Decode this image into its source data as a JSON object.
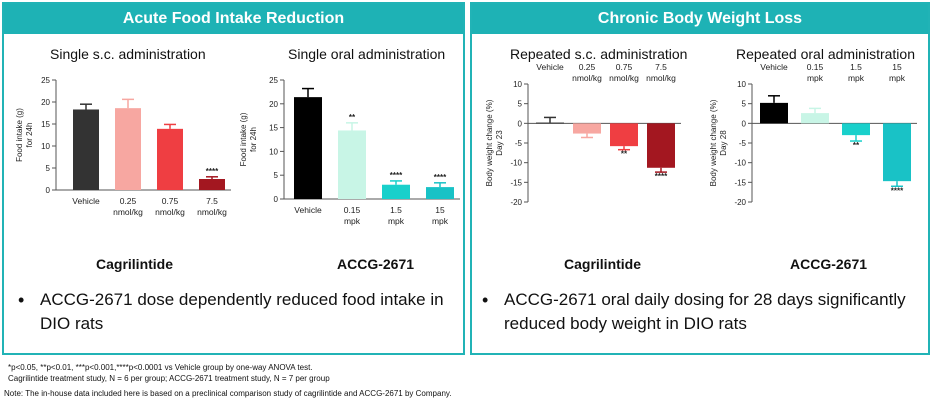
{
  "left_panel": {
    "banner": "Acute Food Intake Reduction",
    "drug_a": "Cagrilintide",
    "drug_b": "ACCG-2671",
    "bullet": "ACCG-2671 dose dependently reduced food intake in DIO rats"
  },
  "right_panel": {
    "banner": "Chronic Body Weight Loss",
    "drug_a": "Cagrilintide",
    "drug_b": "ACCG-2671",
    "bullet": "ACCG-2671 oral daily dosing for 28 days significantly reduced body weight in DIO rats"
  },
  "footnotes": {
    "line1": "*p<0.05, **p<0.01, ***p<0.001,****p<0.0001 vs Vehicle group by one-way ANOVA test.",
    "line2": "Cagrilintide treatment study, N = 6 per group; ACCG-2671 treatment study, N = 7 per group",
    "line3": "Note: The in-house data included here is based on a preclinical comparison study of cagrilintide and ACCG-2671 by Company."
  },
  "chart_data": [
    {
      "type": "bar",
      "title": "Single s.c. administration",
      "ylabel": [
        "Food intake (g)",
        "for 24h"
      ],
      "ylim": [
        0,
        25
      ],
      "yticks": [
        0,
        5,
        10,
        15,
        20,
        25
      ],
      "categories": [
        [
          "Vehicle"
        ],
        [
          "0.25",
          "nmol/kg"
        ],
        [
          "0.75",
          "nmol/kg"
        ],
        [
          "7.5",
          "nmol/kg"
        ]
      ],
      "values": [
        18.3,
        18.6,
        13.9,
        2.5
      ],
      "errors": [
        1.2,
        2.0,
        1.0,
        0.5
      ],
      "colors": [
        "#333333",
        "#f7a7a1",
        "#ef3e42",
        "#a31720"
      ],
      "significance": [
        "",
        "",
        "",
        "****"
      ]
    },
    {
      "type": "bar",
      "title": "Single oral administration",
      "ylabel": [
        "Food intake (g)",
        "for 24h"
      ],
      "ylim": [
        0,
        25
      ],
      "yticks": [
        0,
        5,
        10,
        15,
        20,
        25
      ],
      "categories": [
        [
          "Vehicle"
        ],
        [
          "0.15",
          "mpk"
        ],
        [
          "1.5",
          "mpk"
        ],
        [
          "15",
          "mpk"
        ]
      ],
      "values": [
        21.4,
        14.4,
        3.0,
        2.5
      ],
      "errors": [
        1.8,
        1.6,
        0.8,
        0.9
      ],
      "colors": [
        "#000000",
        "#c8f5e6",
        "#19d0cb",
        "#19c2c6"
      ],
      "significance": [
        "",
        "**",
        "****",
        "****"
      ]
    },
    {
      "type": "bar",
      "title": "Repeated s.c. administration",
      "ylabel": [
        "Body weight change (%)",
        "Day 23"
      ],
      "ylim": [
        -20,
        10
      ],
      "yticks": [
        10,
        5,
        0,
        -5,
        -10,
        -15,
        -20
      ],
      "categories": [
        [
          "Vehicle"
        ],
        [
          "0.25",
          "nmol/kg"
        ],
        [
          "0.75",
          "nmol/kg"
        ],
        [
          "7.5",
          "nmol/kg"
        ]
      ],
      "values": [
        0.2,
        -2.6,
        -5.8,
        -11.3
      ],
      "errors": [
        1.3,
        1.0,
        0.9,
        1.1
      ],
      "colors": [
        "#333333",
        "#f7a7a1",
        "#ef3e42",
        "#a31720"
      ],
      "significance": [
        "",
        "",
        "**",
        "****"
      ]
    },
    {
      "type": "bar",
      "title": "Repeated oral administration",
      "ylabel": [
        "Body weight change (%)",
        "Day 28"
      ],
      "ylim": [
        -20,
        10
      ],
      "yticks": [
        10,
        5,
        0,
        -5,
        -10,
        -15,
        -20
      ],
      "categories": [
        [
          "Vehicle"
        ],
        [
          "0.15",
          "mpk"
        ],
        [
          "1.5",
          "mpk"
        ],
        [
          "15",
          "mpk"
        ]
      ],
      "values": [
        5.2,
        2.6,
        -3.0,
        -14.7
      ],
      "errors": [
        1.8,
        1.2,
        1.5,
        1.3
      ],
      "colors": [
        "#000000",
        "#c8f5e6",
        "#19d0cb",
        "#19c2c6"
      ],
      "significance": [
        "",
        "",
        "**",
        "****"
      ]
    }
  ]
}
